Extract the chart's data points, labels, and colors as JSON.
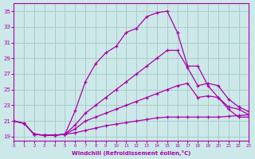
{
  "xlabel": "Windchill (Refroidissement éolien,°C)",
  "bg_color": "#cce8e8",
  "grid_color": "#aacccc",
  "line_color": "#aa00aa",
  "xlim": [
    0,
    23
  ],
  "ylim": [
    18.5,
    36
  ],
  "yticks": [
    19,
    21,
    23,
    25,
    27,
    29,
    31,
    33,
    35
  ],
  "xticks": [
    0,
    1,
    2,
    3,
    4,
    5,
    6,
    7,
    8,
    9,
    10,
    11,
    12,
    13,
    14,
    15,
    16,
    17,
    18,
    19,
    20,
    21,
    22,
    23
  ],
  "series1_x": [
    0,
    1,
    2,
    3,
    4,
    5,
    6,
    7,
    8,
    9,
    10,
    11,
    12,
    13,
    14,
    15,
    16,
    17,
    18,
    19,
    20,
    21,
    22,
    23
  ],
  "series1_y": [
    21.0,
    20.7,
    19.3,
    19.2,
    19.2,
    19.3,
    22.3,
    26.0,
    28.3,
    29.7,
    30.5,
    32.3,
    32.8,
    34.3,
    34.8,
    35.0,
    32.3,
    28.0,
    28.0,
    25.5,
    24.0,
    22.8,
    22.5,
    21.8
  ],
  "series2_x": [
    0,
    1,
    2,
    3,
    4,
    5,
    6,
    7,
    8,
    9,
    10,
    11,
    12,
    13,
    14,
    15,
    16,
    17,
    18,
    19,
    20,
    21,
    22,
    23
  ],
  "series2_y": [
    21.0,
    20.7,
    19.3,
    19.2,
    19.2,
    19.3,
    20.5,
    22.0,
    23.0,
    24.0,
    25.0,
    26.0,
    27.0,
    28.0,
    29.0,
    30.0,
    30.0,
    27.8,
    25.5,
    25.8,
    25.5,
    23.8,
    22.8,
    22.2
  ],
  "series3_x": [
    0,
    1,
    2,
    3,
    4,
    5,
    6,
    7,
    8,
    9,
    10,
    11,
    12,
    13,
    14,
    15,
    16,
    17,
    18,
    19,
    20,
    21,
    22,
    23
  ],
  "series3_y": [
    21.0,
    20.7,
    19.3,
    19.2,
    19.2,
    19.3,
    20.0,
    21.0,
    21.5,
    22.0,
    22.5,
    23.0,
    23.5,
    24.0,
    24.5,
    25.0,
    25.5,
    25.8,
    24.0,
    24.2,
    24.0,
    22.5,
    21.5,
    21.5
  ],
  "series4_x": [
    0,
    1,
    2,
    3,
    4,
    5,
    6,
    7,
    8,
    9,
    10,
    11,
    12,
    13,
    14,
    15,
    16,
    17,
    18,
    19,
    20,
    21,
    22,
    23
  ],
  "series4_y": [
    21.0,
    20.7,
    19.3,
    19.2,
    19.2,
    19.3,
    19.5,
    19.8,
    20.1,
    20.4,
    20.6,
    20.8,
    21.0,
    21.2,
    21.4,
    21.5,
    21.5,
    21.5,
    21.5,
    21.5,
    21.5,
    21.6,
    21.7,
    21.8
  ]
}
